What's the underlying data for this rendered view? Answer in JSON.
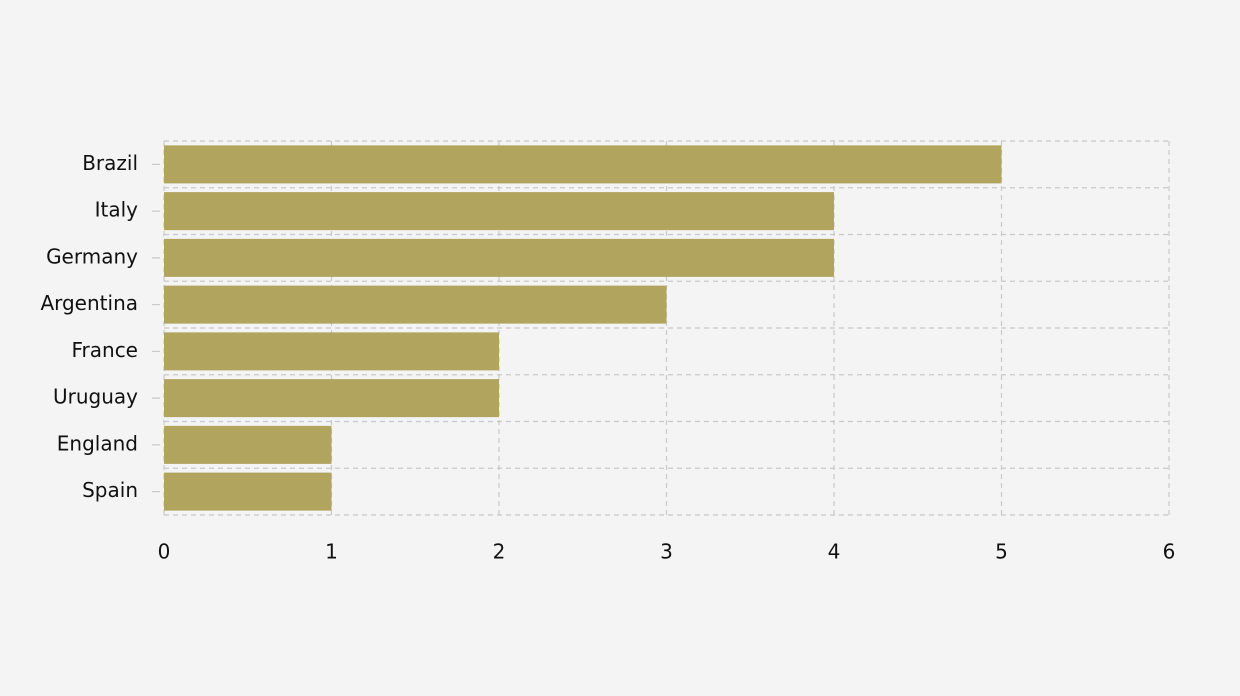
{
  "chart_data": {
    "type": "bar",
    "orientation": "horizontal",
    "categories": [
      "Brazil",
      "Italy",
      "Germany",
      "Argentina",
      "France",
      "Uruguay",
      "England",
      "Spain"
    ],
    "values": [
      5,
      4,
      4,
      3,
      2,
      2,
      1,
      1
    ],
    "color": "#aea15a",
    "xlim": [
      0,
      6
    ],
    "xticks": [
      0,
      1,
      2,
      3,
      4,
      5,
      6
    ],
    "grid": true
  }
}
